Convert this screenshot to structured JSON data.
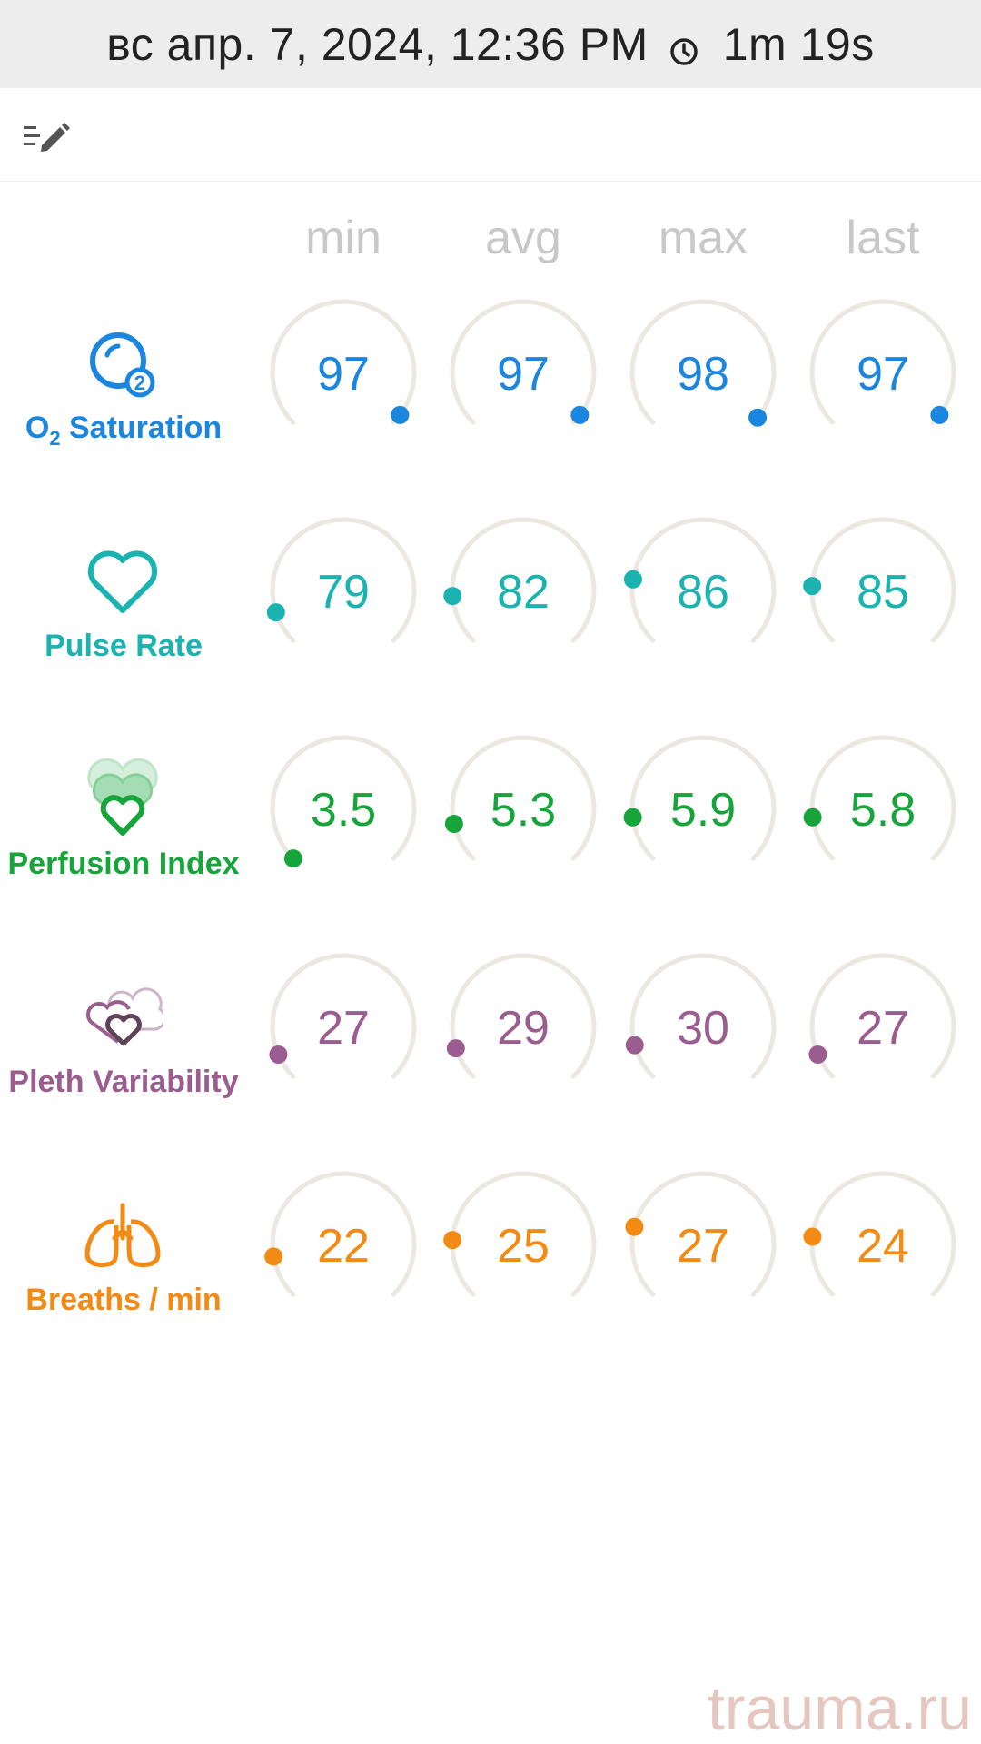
{
  "header": {
    "datetime": "вс апр. 7, 2024, 12:36 PM",
    "duration": "1m 19s",
    "duration_icon": "clock-icon"
  },
  "toolbar": {
    "edit_icon": "edit-list-icon"
  },
  "columns": [
    "min",
    "avg",
    "max",
    "last"
  ],
  "metrics": [
    {
      "id": "o2",
      "label_main": "O",
      "label_sub": "2",
      "label_rest": " Saturation",
      "color": "#1a86e0",
      "icon": "o2-bubble-icon",
      "values": [
        "97",
        "97",
        "98",
        "97"
      ],
      "levels": [
        0.97,
        0.97,
        0.98,
        0.97
      ]
    },
    {
      "id": "pulse",
      "label": "Pulse Rate",
      "color": "#1ab3b0",
      "icon": "heart-icon",
      "values": [
        "79",
        "82",
        "86",
        "85"
      ],
      "levels": [
        0.1,
        0.15,
        0.2,
        0.18
      ]
    },
    {
      "id": "perfusion",
      "label": "Perfusion Index",
      "color": "#17a43a",
      "icon": "perfusion-hearts-icon",
      "values": [
        "3.5",
        "5.3",
        "5.9",
        "5.8"
      ],
      "levels": [
        0.0,
        0.12,
        0.14,
        0.14
      ]
    },
    {
      "id": "pleth",
      "label": "Pleth Variability",
      "color": "#9b5d8f",
      "icon": "pleth-hearts-icon",
      "values": [
        "27",
        "29",
        "30",
        "27"
      ],
      "levels": [
        0.08,
        0.1,
        0.11,
        0.08
      ]
    },
    {
      "id": "breaths",
      "label": "Breaths / min",
      "color": "#f38a13",
      "icon": "lungs-icon",
      "values": [
        "22",
        "25",
        "27",
        "24"
      ],
      "levels": [
        0.13,
        0.18,
        0.22,
        0.19
      ]
    }
  ],
  "gauge_track_color": "#ebe8e2",
  "watermark": "trauma.ru"
}
